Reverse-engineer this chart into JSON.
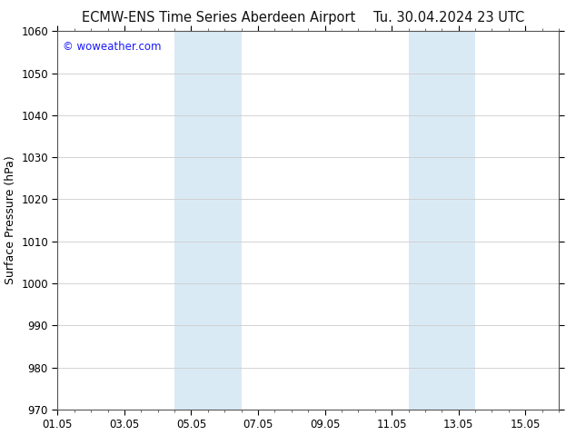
{
  "title_left": "ECMW-ENS Time Series Aberdeen Airport",
  "title_right": "Tu. 30.04.2024 23 UTC",
  "ylabel": "Surface Pressure (hPa)",
  "watermark": "© woweather.com",
  "watermark_color": "#1a1aff",
  "ylim": [
    970,
    1060
  ],
  "yticks": [
    970,
    980,
    990,
    1000,
    1010,
    1020,
    1030,
    1040,
    1050,
    1060
  ],
  "xlim_start": 0.0,
  "xlim_end": 15.0,
  "xtick_positions": [
    0,
    2,
    4,
    6,
    8,
    10,
    12,
    14
  ],
  "xtick_labels": [
    "01.05",
    "03.05",
    "05.05",
    "07.05",
    "09.05",
    "11.05",
    "13.05",
    "15.05"
  ],
  "shaded_bands": [
    {
      "xmin": 3.5,
      "xmax": 5.5
    },
    {
      "xmin": 10.5,
      "xmax": 12.5
    }
  ],
  "band_color": "#daeaf5",
  "background_color": "#ffffff",
  "grid_color": "#cccccc",
  "title_fontsize": 10.5,
  "tick_fontsize": 8.5,
  "ylabel_fontsize": 9,
  "watermark_fontsize": 8.5
}
